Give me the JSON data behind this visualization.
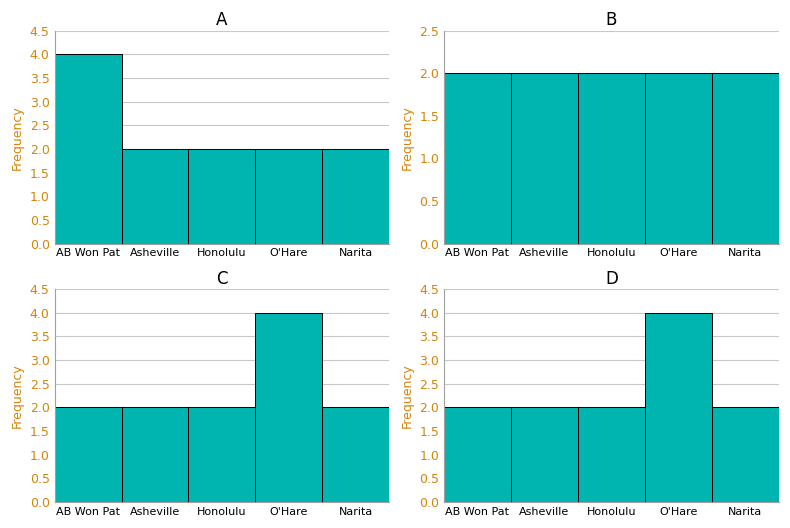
{
  "categories": [
    "AB Won Pat",
    "Asheville",
    "Honolulu",
    "O'Hare",
    "Narita"
  ],
  "subplots": [
    {
      "title": "A",
      "values": [
        4,
        2,
        2,
        2,
        2
      ],
      "ylim": [
        0,
        4.5
      ],
      "yticks": [
        0,
        0.5,
        1,
        1.5,
        2,
        2.5,
        3,
        3.5,
        4,
        4.5
      ]
    },
    {
      "title": "B",
      "values": [
        2,
        2,
        2,
        2,
        2
      ],
      "ylim": [
        0,
        2.5
      ],
      "yticks": [
        0,
        0.5,
        1,
        1.5,
        2,
        2.5
      ]
    },
    {
      "title": "C",
      "values": [
        2,
        2,
        2,
        4,
        2
      ],
      "ylim": [
        0,
        4.5
      ],
      "yticks": [
        0,
        0.5,
        1,
        1.5,
        2,
        2.5,
        3,
        3.5,
        4,
        4.5
      ]
    },
    {
      "title": "D",
      "values": [
        2,
        2,
        2,
        4,
        2
      ],
      "ylim": [
        0,
        4.5
      ],
      "yticks": [
        0,
        0.5,
        1,
        1.5,
        2,
        2.5,
        3,
        3.5,
        4,
        4.5
      ]
    }
  ],
  "bar_color": "#00b5b0",
  "bar_edge_color": "#000000",
  "ylabel": "Frequency",
  "ylabel_color": "#d4840a",
  "tick_color": "#d4840a",
  "bg_color": "#ffffff",
  "plot_bg_color": "#ffffff",
  "grid_color": "#c8c8c8",
  "title_fontsize": 12,
  "ylabel_fontsize": 9,
  "tick_fontsize": 9,
  "xtick_fontsize": 8,
  "spine_color": "#a0a0a0"
}
